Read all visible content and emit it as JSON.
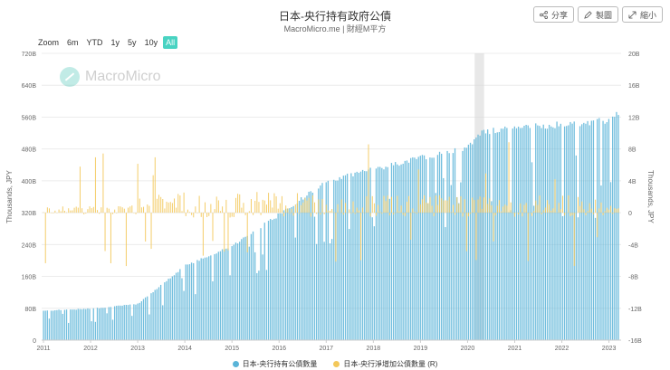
{
  "header": {
    "title": "日本-央行持有政府公債",
    "subtitle": "MacroMicro.me | 財經M平方"
  },
  "toolbar": {
    "share": "分享",
    "draw": "製圖",
    "shrink": "縮小"
  },
  "zoom": {
    "label": "Zoom",
    "options": [
      "6m",
      "YTD",
      "1y",
      "5y",
      "10y",
      "All"
    ],
    "active": "All"
  },
  "watermark": "MacroMicro",
  "colors": {
    "holdings": "#5ab4d8",
    "net": "#f3c85a",
    "shade": "#d9d9d9",
    "grid": "#ececec"
  },
  "chart_data": {
    "type": "bar",
    "title": "日本-央行持有政府公債",
    "x": [
      "2011",
      "2012",
      "2013",
      "2014",
      "2015",
      "2016",
      "2017",
      "2018",
      "2019",
      "2020",
      "2021",
      "2022",
      "2023"
    ],
    "left_axis": {
      "label": "Thousands, JPY",
      "range": [
        0,
        720
      ],
      "ticks": [
        "0",
        "80B",
        "160B",
        "240B",
        "320B",
        "400B",
        "480B",
        "560B",
        "640B",
        "720B"
      ]
    },
    "right_axis": {
      "label": "Thousands, JPY",
      "range": [
        -16,
        20
      ],
      "ticks": [
        "-16B",
        "-12B",
        "-8B",
        "-4B",
        "0",
        "4B",
        "8B",
        "12B",
        "16B",
        "20B"
      ]
    },
    "series": [
      {
        "name": "日本-央行持有公債數量",
        "axis": "left",
        "anchors_year": [
          2011,
          2012,
          2013,
          2013.5,
          2014,
          2015,
          2016,
          2017,
          2018,
          2019,
          2020,
          2020.3,
          2021,
          2022,
          2023,
          2023.2
        ],
        "anchors_value": [
          75,
          80,
          92,
          140,
          190,
          240,
          320,
          405,
          435,
          465,
          490,
          530,
          540,
          550,
          560,
          580
        ]
      },
      {
        "name": "日本-央行淨增加公債數量 (R)",
        "axis": "right",
        "note": "monthly net change, mostly between -8B and +8B with spikes to about +9.5B and -6.8B"
      }
    ],
    "shaded_region": [
      2020.15,
      2020.35
    ]
  },
  "legend": [
    {
      "label": "日本-央行持有公債數量",
      "color": "#5ab4d8"
    },
    {
      "label": "日本-央行淨增加公債數量 (R)",
      "color": "#f3c85a"
    }
  ]
}
